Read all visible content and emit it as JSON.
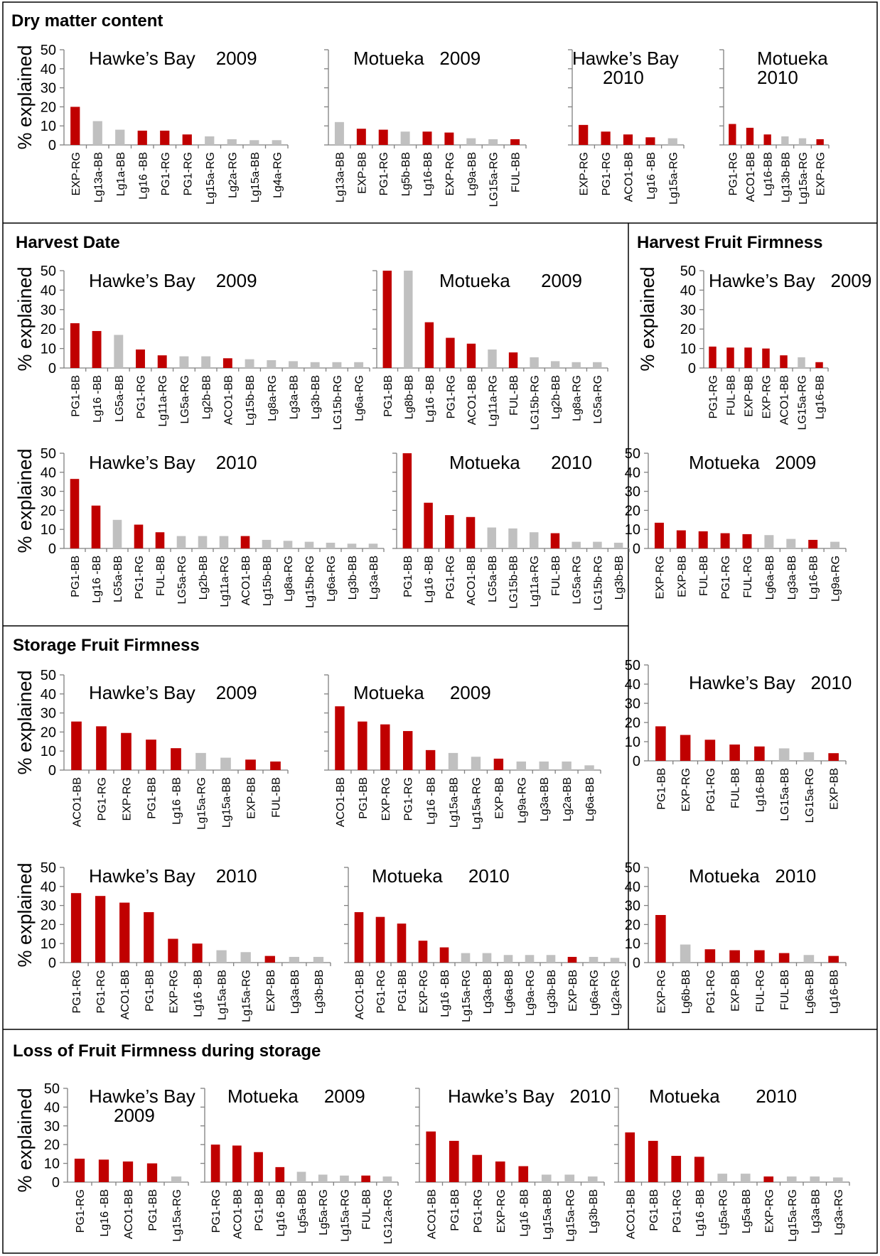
{
  "colors": {
    "significant": "#c00000",
    "non_significant": "#c0c0c0"
  },
  "section_titles": {
    "dm": "Dry matter content",
    "hd": "Harvest Date",
    "hff": "Harvest Fruit Firmness",
    "sff": "Storage Fruit Firmness",
    "lff": "Loss of Fruit Firmness during storage"
  },
  "chart_data": [
    {
      "type": "bar",
      "section": "Dry matter content",
      "title": [
        "Hawke’s Bay    2009"
      ],
      "ylabel": "% explained",
      "ylim": [
        0,
        50
      ],
      "yticks": [
        0,
        10,
        20,
        30,
        40,
        50
      ],
      "categories": [
        "EXP-RG",
        "Lg13a-BB",
        "Lg1a-BB",
        "Lg16 -BB",
        "PG1-RG",
        "PG1-RG",
        "Lg15a-RG",
        "Lg2a-RG",
        "Lg15a-BB",
        "Lg4a-RG"
      ],
      "values": [
        20,
        12.5,
        8,
        7.5,
        7.5,
        5.5,
        4.5,
        3,
        2.5,
        2.5
      ],
      "significant": [
        1,
        0,
        0,
        1,
        1,
        1,
        0,
        0,
        0,
        0
      ]
    },
    {
      "type": "bar",
      "section": "Dry matter content",
      "title": [
        "Motueka   2009"
      ],
      "ylabel": "",
      "ylim": [
        0,
        50
      ],
      "yticks": [],
      "categories": [
        "Lg13a-BB",
        "EXP-BB",
        "PG1-RG",
        "Lg5b-BB",
        "Lg16-BB",
        "EXP-RG",
        "Lg9a-BB",
        "LG15a-RG",
        "FUL-BB"
      ],
      "values": [
        12,
        8.5,
        8,
        7,
        7,
        6.5,
        3.5,
        3,
        3
      ],
      "significant": [
        0,
        1,
        1,
        0,
        1,
        1,
        0,
        0,
        1
      ]
    },
    {
      "type": "bar",
      "section": "Dry matter content",
      "title": [
        "Hawke’s Bay",
        "2010"
      ],
      "ylabel": "",
      "ylim": [
        0,
        50
      ],
      "yticks": [],
      "categories": [
        "EXP-RG",
        "PG1-RG",
        "ACO1-BB",
        "Lg16 -BB",
        "Lg15a-RG"
      ],
      "values": [
        10.5,
        7,
        5.5,
        4,
        3.5
      ],
      "significant": [
        1,
        1,
        1,
        1,
        0
      ]
    },
    {
      "type": "bar",
      "section": "Dry matter content",
      "title": [
        "Motueka",
        "2010"
      ],
      "ylabel": "",
      "ylim": [
        0,
        50
      ],
      "yticks": [],
      "categories": [
        "PG1-RG",
        "ACO1-BB",
        "Lg16-BB",
        "Lg13b-BB",
        "Lg15a-RG",
        "EXP-RG"
      ],
      "values": [
        11,
        9,
        5.5,
        4.5,
        3.5,
        3
      ],
      "significant": [
        1,
        1,
        1,
        0,
        0,
        1
      ]
    },
    {
      "type": "bar",
      "section": "Harvest Date",
      "title": [
        "Hawke’s Bay    2009"
      ],
      "ylabel": "% explained",
      "ylim": [
        0,
        50
      ],
      "yticks": [
        0,
        10,
        20,
        30,
        40,
        50
      ],
      "categories": [
        "PG1-BB",
        "Lg16 -BB",
        "LG5a-BB",
        "PG1-RG",
        "Lg11a-RG",
        "LG5a-RG",
        "Lg2b-BB",
        "ACO1-BB",
        "Lg15b-BB",
        "Lg8a-RG",
        "Lg3a-BB",
        "Lg3b-BB",
        "LG15b-RG",
        "Lg6a-RG"
      ],
      "values": [
        23,
        19,
        17,
        9.5,
        6.5,
        6,
        6,
        5,
        4.5,
        4,
        3.5,
        3,
        3,
        3
      ],
      "significant": [
        1,
        1,
        0,
        1,
        1,
        0,
        0,
        1,
        0,
        0,
        0,
        0,
        0,
        0
      ]
    },
    {
      "type": "bar",
      "section": "Harvest Date",
      "title": [
        "Motueka      2009"
      ],
      "ylabel": "",
      "ylim": [
        0,
        50
      ],
      "yticks": [],
      "categories": [
        "PG1-BB",
        "Lg8b-BB",
        "Lg16 -BB",
        "PG1-RG",
        "ACO1-BB",
        "Lg11a-RG",
        "FUL-BB",
        "LG15b-RG",
        "Lg2b-BB",
        "Lg8a-RG",
        "LG5a-RG"
      ],
      "values": [
        50,
        50,
        23.5,
        15.5,
        12.5,
        9.5,
        8,
        5.5,
        3.5,
        3,
        3
      ],
      "significant": [
        1,
        0,
        1,
        1,
        1,
        0,
        1,
        0,
        0,
        0,
        0
      ]
    },
    {
      "type": "bar",
      "section": "Harvest Fruit Firmness",
      "title": [
        "Hawke’s Bay   2009"
      ],
      "ylabel": "% explained",
      "ylim": [
        0,
        50
      ],
      "yticks": [
        0,
        10,
        20,
        30,
        40,
        50
      ],
      "categories": [
        "PG1-RG",
        "FUL-BB",
        "EXP-BB",
        "EXP-RG",
        "ACO1-BB",
        "LG15a-RG",
        "Lg16-BB"
      ],
      "values": [
        11,
        10.5,
        10.5,
        10,
        6.5,
        5.5,
        3
      ],
      "significant": [
        1,
        1,
        1,
        1,
        1,
        0,
        1
      ]
    },
    {
      "type": "bar",
      "section": "Harvest Date",
      "title": [
        "Hawke’s Bay    2010"
      ],
      "ylabel": "% explained",
      "ylim": [
        0,
        50
      ],
      "yticks": [
        0,
        10,
        20,
        30,
        40,
        50
      ],
      "categories": [
        "PG1-BB",
        "Lg16 -BB",
        "LG5a-BB",
        "PG1-RG",
        "FUL-BB",
        "LG5a-RG",
        "Lg2b-BB",
        "Lg11a-RG",
        "ACO1-BB",
        "Lg15b-BB",
        "Lg8a-RG",
        "Lg15b-RG",
        "Lg6a-RG",
        "Lg3b-BB",
        "Lg3a-BB"
      ],
      "values": [
        36.5,
        22.5,
        15,
        12.5,
        8.5,
        6.5,
        6.5,
        6.5,
        6.5,
        4.5,
        4,
        3.5,
        3,
        2.5,
        2.5
      ],
      "significant": [
        1,
        1,
        0,
        1,
        1,
        0,
        0,
        0,
        1,
        0,
        0,
        0,
        0,
        0,
        0
      ]
    },
    {
      "type": "bar",
      "section": "Harvest Date",
      "title": [
        "Motueka      2010"
      ],
      "ylabel": "",
      "ylim": [
        0,
        50
      ],
      "yticks": [],
      "categories": [
        "PG1-BB",
        "Lg16 -BB",
        "PG1-RG",
        "ACO1-BB",
        "LG5a-BB",
        "LG15b-BB",
        "Lg11a-RG",
        "FUL-BB",
        "LG5a-RG",
        "LG15b-RG",
        "Lg3b-BB"
      ],
      "values": [
        50,
        24,
        17.5,
        16.5,
        11,
        10.5,
        8.5,
        8,
        3.5,
        3.5,
        3
      ],
      "significant": [
        1,
        1,
        1,
        1,
        0,
        0,
        0,
        1,
        0,
        0,
        0
      ]
    },
    {
      "type": "bar",
      "section": "Harvest Fruit Firmness",
      "title": [
        "Motueka   2009"
      ],
      "ylabel": "",
      "ylim": [
        0,
        50
      ],
      "yticks": [
        0,
        10,
        20,
        30,
        40,
        50
      ],
      "categories": [
        "EXP-RG",
        "EXP-BB",
        "FUL-BB",
        "PG1-RG",
        "FUL-RG",
        "Lg6a-BB",
        "Lg3a-BB",
        "Lg16-BB",
        "Lg9a-RG"
      ],
      "values": [
        13.5,
        9.5,
        9,
        8,
        7.5,
        7,
        5,
        4.5,
        3.5
      ],
      "significant": [
        1,
        1,
        1,
        1,
        1,
        0,
        0,
        1,
        0
      ]
    },
    {
      "type": "bar",
      "section": "Storage Fruit Firmness",
      "title": [
        "Hawke’s Bay    2009"
      ],
      "ylabel": "% explained",
      "ylim": [
        0,
        50
      ],
      "yticks": [
        0,
        10,
        20,
        30,
        40,
        50
      ],
      "categories": [
        "ACO1-BB",
        "PG1-RG",
        "EXP-RG",
        "PG1-BB",
        "Lg16 -BB",
        "Lg15a-RG",
        "Lg15a-BB",
        "EXP-BB",
        "FUL-BB"
      ],
      "values": [
        25.5,
        23,
        19.5,
        16,
        11.5,
        9,
        6.5,
        5.5,
        4.5
      ],
      "significant": [
        1,
        1,
        1,
        1,
        1,
        0,
        0,
        1,
        1
      ]
    },
    {
      "type": "bar",
      "section": "Storage Fruit Firmness",
      "title": [
        "Motueka     2009"
      ],
      "ylabel": "",
      "ylim": [
        0,
        50
      ],
      "yticks": [],
      "categories": [
        "ACO1-BB",
        "PG1-BB",
        "EXP-RG",
        "PG1-RG",
        "Lg16 -BB",
        "Lg15a-BB",
        "Lg15a-RG",
        "EXP-BB",
        "Lg9a-RG",
        "Lg3a-BB",
        "Lg2a-BB",
        "Lg6a-BB"
      ],
      "values": [
        33.5,
        25.5,
        24,
        20.5,
        10.5,
        9,
        7,
        6,
        4.5,
        4.5,
        4.5,
        2.5
      ],
      "significant": [
        1,
        1,
        1,
        1,
        1,
        0,
        0,
        1,
        0,
        0,
        0,
        0
      ]
    },
    {
      "type": "bar",
      "section": "Harvest Fruit Firmness",
      "title": [
        "Hawke’s Bay   2010"
      ],
      "ylabel": "",
      "ylim": [
        0,
        50
      ],
      "yticks": [
        0,
        10,
        20,
        30,
        40,
        50
      ],
      "categories": [
        "PG1-BB",
        "EXP-RG",
        "PG1-RG",
        "FUL-BB",
        "Lg16-BB",
        "LG15a-BB",
        "LG15a-RG",
        "EXP-BB"
      ],
      "values": [
        18,
        13.5,
        11,
        8.5,
        7.5,
        6.5,
        4.5,
        4
      ],
      "significant": [
        1,
        1,
        1,
        1,
        1,
        0,
        0,
        1
      ]
    },
    {
      "type": "bar",
      "section": "Storage Fruit Firmness",
      "title": [
        "Hawke’s Bay    2010"
      ],
      "ylabel": "% explained",
      "ylim": [
        0,
        50
      ],
      "yticks": [
        0,
        10,
        20,
        30,
        40,
        50
      ],
      "categories": [
        "PG1-RG",
        "PG1-RG",
        "ACO1-BB",
        "PG1-BB",
        "EXP-RG",
        "Lg16 -BB",
        "Lg15a-BB",
        "Lg15a-RG",
        "EXP-BB",
        "Lg3a-BB",
        "Lg3b-BB"
      ],
      "values": [
        36.5,
        35,
        31.5,
        26.5,
        12.5,
        10,
        6.5,
        5.5,
        3.5,
        3,
        3
      ],
      "significant": [
        1,
        1,
        1,
        1,
        1,
        1,
        0,
        0,
        1,
        0,
        0
      ]
    },
    {
      "type": "bar",
      "section": "Storage Fruit Firmness",
      "title": [
        "Motueka     2010"
      ],
      "ylabel": "",
      "ylim": [
        0,
        50
      ],
      "yticks": [],
      "categories": [
        "ACO1-BB",
        "PG1-RG",
        "PG1-BB",
        "EXP-RG",
        "Lg16 -BB",
        "Lg15a-RG",
        "Lg3a-BB",
        "Lg6a-BB",
        "Lg9a-RG",
        "Lg3b-BB",
        "EXP-BB",
        "Lg6a-RG",
        "Lg2a-RG"
      ],
      "values": [
        26.5,
        24,
        20.5,
        11.5,
        8,
        5,
        5,
        4,
        4,
        4,
        3,
        3,
        2.5
      ],
      "significant": [
        1,
        1,
        1,
        1,
        1,
        0,
        0,
        0,
        0,
        0,
        1,
        0,
        0
      ]
    },
    {
      "type": "bar",
      "section": "Harvest Fruit Firmness",
      "title": [
        "Motueka   2010"
      ],
      "ylabel": "",
      "ylim": [
        0,
        50
      ],
      "yticks": [
        0,
        10,
        20,
        30,
        40,
        50
      ],
      "categories": [
        "EXP-RG",
        "Lg6b-BB",
        "PG1-RG",
        "EXP-BB",
        "FUL-RG",
        "FUL-BB",
        "Lg6a-BB",
        "Lg16-BB"
      ],
      "values": [
        25,
        9.5,
        7,
        6.5,
        6.5,
        5,
        4,
        3.5
      ],
      "significant": [
        1,
        0,
        1,
        1,
        1,
        1,
        0,
        1
      ]
    },
    {
      "type": "bar",
      "section": "Loss of Fruit Firmness during storage",
      "title": [
        "Hawke’s Bay",
        "2009"
      ],
      "ylabel": "% explained",
      "ylim": [
        0,
        50
      ],
      "yticks": [
        0,
        10,
        20,
        30,
        40,
        50
      ],
      "categories": [
        "PG1-RG",
        "Lg16 -BB",
        "ACO1-BB",
        "PG1-BB",
        "Lg15a-RG"
      ],
      "values": [
        12.5,
        12,
        11,
        10,
        3
      ],
      "significant": [
        1,
        1,
        1,
        1,
        0
      ]
    },
    {
      "type": "bar",
      "section": "Loss of Fruit Firmness during storage",
      "title": [
        "Motueka     2009"
      ],
      "ylabel": "",
      "ylim": [
        0,
        50
      ],
      "yticks": [],
      "categories": [
        "PG1-RG",
        "ACO1-BB",
        "PG1-BB",
        "Lg16 -BB",
        "Lg5a-BB",
        "Lg5a-RG",
        "Lg15a-RG",
        "FUL-BB",
        "LG12a-RG"
      ],
      "values": [
        20,
        19.5,
        16,
        8,
        5.5,
        4,
        3.5,
        3.5,
        3
      ],
      "significant": [
        1,
        1,
        1,
        1,
        0,
        0,
        0,
        1,
        0
      ]
    },
    {
      "type": "bar",
      "section": "Loss of Fruit Firmness during storage",
      "title": [
        "Hawke’s Bay   2010"
      ],
      "ylabel": "",
      "ylim": [
        0,
        50
      ],
      "yticks": [],
      "categories": [
        "ACO1-BB",
        "PG1-BB",
        "PG1-RG",
        "EXP-RG",
        "Lg16 -BB",
        "Lg15a-BB",
        "Lg15a-RG",
        "Lg3b-BB"
      ],
      "values": [
        27,
        22,
        14.5,
        11,
        8.5,
        4,
        4,
        3
      ],
      "significant": [
        1,
        1,
        1,
        1,
        1,
        0,
        0,
        0
      ]
    },
    {
      "type": "bar",
      "section": "Loss of Fruit Firmness during storage",
      "title": [
        "Motueka       2010"
      ],
      "ylabel": "",
      "ylim": [
        0,
        50
      ],
      "yticks": [],
      "categories": [
        "ACO1-BB",
        "PG1-BB",
        "PG1-RG",
        "Lg16 -BB",
        "Lg5a-RG",
        "Lg5a-BB",
        "EXP-RG",
        "Lg15a-RG",
        "Lg3a-BB",
        "Lg3a-RG"
      ],
      "values": [
        26.5,
        22,
        14,
        13.5,
        4.5,
        4.5,
        3,
        3,
        3,
        2.5
      ],
      "significant": [
        1,
        1,
        1,
        1,
        0,
        0,
        1,
        0,
        0,
        0
      ]
    }
  ]
}
